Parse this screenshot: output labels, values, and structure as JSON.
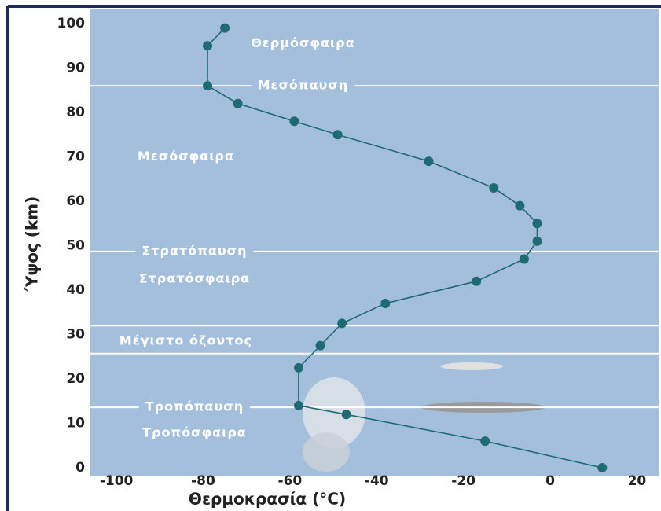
{
  "chart_data": {
    "type": "line",
    "xlabel": "Θερμοκρασία (°C)",
    "ylabel": "Ύψος (km)",
    "x": [
      12,
      -15,
      -47,
      -58,
      -58,
      -53,
      -48,
      -38,
      -17,
      -6,
      -3,
      -3,
      -7,
      -13,
      -28,
      -49,
      -59,
      -72,
      -79,
      -79,
      -75
    ],
    "values": [
      0,
      6,
      12,
      14,
      22.5,
      27.5,
      32.5,
      37,
      42,
      47,
      51,
      55,
      59,
      63,
      69,
      75,
      78,
      82,
      86,
      95,
      99
    ],
    "color": "#1f6b73",
    "xlim": [
      -106,
      25
    ],
    "xticks": [
      -100,
      -80,
      -60,
      -40,
      -20,
      0,
      20
    ],
    "ylim": [
      0,
      100
    ],
    "yticks": [
      0,
      10,
      20,
      30,
      40,
      50,
      60,
      70,
      80,
      90,
      100
    ],
    "boundaries": [
      86,
      48.7,
      32,
      25.7,
      13.6
    ],
    "annotations": [
      {
        "text": "Θερμόσφαιρα",
        "x": -57,
        "y": 95.5
      },
      {
        "text": "Μεσόπαυση",
        "x": -57,
        "y": 86
      },
      {
        "text": "Μεσόσφαιρα",
        "x": -84,
        "y": 70
      },
      {
        "text": "Στρατόπαυση",
        "x": -82,
        "y": 48.7
      },
      {
        "text": "Στρατόσφαιρα",
        "x": -82,
        "y": 42.5
      },
      {
        "text": "Μέγιστο όζοντος",
        "x": -84,
        "y": 28.5
      },
      {
        "text": "Τροπόπαυση",
        "x": -82,
        "y": 13.6
      },
      {
        "text": "Τροπόσφαιρα",
        "x": -82,
        "y": 7.8
      }
    ]
  }
}
